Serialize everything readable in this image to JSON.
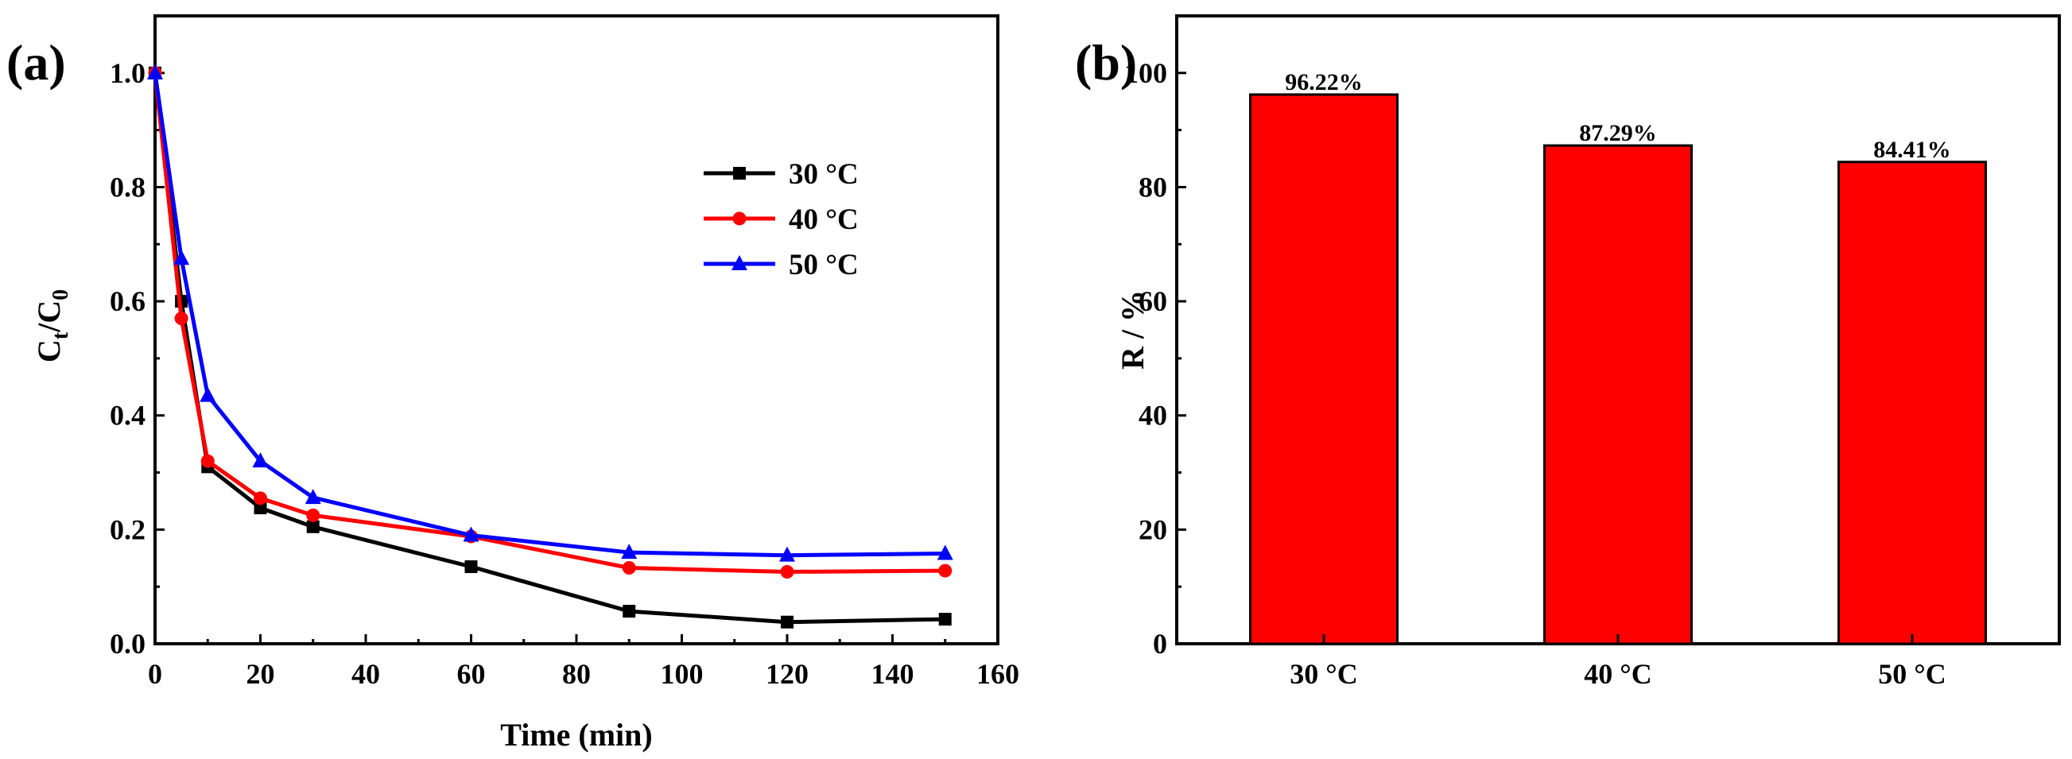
{
  "chart_data": [
    {
      "panel": "(a)",
      "type": "line",
      "xlabel": "Time (min)",
      "ylabel": {
        "main": "C",
        "sub1": "t",
        "slash": "/C",
        "sub2": "0"
      },
      "xlim": [
        0,
        160
      ],
      "ylim": [
        0,
        1.1
      ],
      "xticks": [
        0,
        20,
        40,
        60,
        80,
        100,
        120,
        140,
        160
      ],
      "yticks": [
        "0.0",
        "0.2",
        "0.4",
        "0.6",
        "0.8",
        "1.0"
      ],
      "ytick_values": [
        0,
        0.2,
        0.4,
        0.6,
        0.8,
        1.0
      ],
      "legend_position": "upper-right",
      "series": [
        {
          "name": "30 °C",
          "color": "#000000",
          "marker": "square",
          "x": [
            0,
            5,
            10,
            20,
            30,
            60,
            90,
            120,
            150
          ],
          "y": [
            1.0,
            0.6,
            0.31,
            0.238,
            0.205,
            0.135,
            0.057,
            0.038,
            0.043
          ]
        },
        {
          "name": "40 °C",
          "color": "#ff0000",
          "marker": "circle",
          "x": [
            0,
            5,
            10,
            20,
            30,
            60,
            90,
            120,
            150
          ],
          "y": [
            1.0,
            0.57,
            0.32,
            0.255,
            0.225,
            0.188,
            0.133,
            0.126,
            0.128
          ]
        },
        {
          "name": "50 °C",
          "color": "#0000ff",
          "marker": "triangle",
          "x": [
            0,
            5,
            10,
            20,
            30,
            60,
            90,
            120,
            150
          ],
          "y": [
            1.0,
            0.675,
            0.435,
            0.32,
            0.256,
            0.19,
            0.16,
            0.155,
            0.158
          ]
        }
      ]
    },
    {
      "panel": "(b)",
      "type": "bar",
      "ylabel": "R / %",
      "ylim": [
        0,
        110
      ],
      "yticks": [
        0,
        20,
        40,
        60,
        80,
        100
      ],
      "categories": [
        "30 °C",
        "40 °C",
        "50 °C"
      ],
      "values": [
        96.22,
        87.29,
        84.41
      ],
      "value_labels": [
        "96.22%",
        "87.29%",
        "84.41%"
      ],
      "bar_color": "#ff0000",
      "bar_edge_color": "#000000"
    }
  ]
}
